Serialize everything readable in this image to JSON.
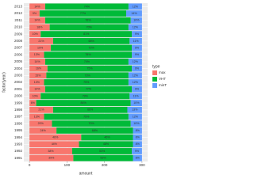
{
  "chart_data": {
    "type": "stacked_barh",
    "x_label": "amount",
    "y_label": "factor(year)",
    "legend_title": "type",
    "categories": [
      "1991",
      "1992",
      "1993",
      "1994",
      "1995",
      "1996",
      "1997",
      "1998",
      "1999",
      "2000",
      "2001",
      "2002",
      "2003",
      "2004",
      "2005",
      "2006",
      "2007",
      "2008",
      "2009",
      "2010",
      "2011",
      "2012",
      "2013"
    ],
    "series": [
      {
        "name": "max",
        "color": "#F8766D",
        "values": [
          117,
          114,
          132,
          138,
          72,
          60,
          39,
          63,
          18,
          30,
          42,
          39,
          45,
          48,
          42,
          39,
          57,
          63,
          30,
          54,
          42,
          27,
          42
        ],
        "value_labels": [
          "39%",
          "38%",
          "44%",
          "46%",
          "24%",
          "20%",
          "13%",
          "21%",
          "6%",
          "10%",
          "14%",
          "13%",
          "15%",
          "16%",
          "14%",
          "13%",
          "19%",
          "21%",
          "10%",
          "18%",
          "14%",
          "9%",
          "14%"
        ]
      },
      {
        "name": "VHT",
        "color": "#00BA38",
        "values": [
          159,
          159,
          144,
          138,
          204,
          210,
          225,
          198,
          252,
          237,
          231,
          225,
          219,
          225,
          222,
          234,
          216,
          204,
          243,
          210,
          228,
          231,
          222
        ],
        "value_labels": [
          "53%",
          "53%",
          "48%",
          "46%",
          "68%",
          "70%",
          "75%",
          "66%",
          "84%",
          "79%",
          "77%",
          "75%",
          "73%",
          "75%",
          "74%",
          "78%",
          "72%",
          "68%",
          "81%",
          "70%",
          "76%",
          "77%",
          "74%"
        ]
      },
      {
        "name": "minT",
        "color": "#619CFF",
        "values": [
          24,
          27,
          24,
          24,
          24,
          30,
          36,
          39,
          30,
          33,
          27,
          36,
          36,
          27,
          36,
          27,
          27,
          33,
          27,
          36,
          30,
          42,
          36
        ],
        "value_labels": [
          "8%",
          "9%",
          "8%",
          "8%",
          "8%",
          "10%",
          "12%",
          "13%",
          "10%",
          "11%",
          "9%",
          "12%",
          "12%",
          "9%",
          "12%",
          "9%",
          "9%",
          "11%",
          "9%",
          "12%",
          "10%",
          "14%",
          "12%"
        ]
      }
    ],
    "xlim": [
      -15,
      315
    ],
    "xticks": [
      0,
      100,
      200,
      300
    ],
    "grid": true,
    "legend_position": "right"
  }
}
